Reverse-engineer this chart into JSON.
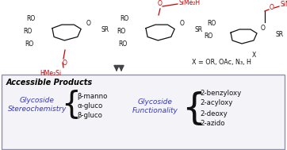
{
  "fig_width": 3.62,
  "fig_height": 1.89,
  "dpi": 100,
  "bg_color": "#ffffff",
  "box_edge": "#9090a8",
  "box_bg": "#f4f4f8",
  "title_text": "Accessible Products",
  "title_fontsize": 7.2,
  "title_color": "#000000",
  "blue_color": "#3535cc",
  "black_color": "#111111",
  "red_color": "#cc0000",
  "left_label": "Glycoside\nStereochemistry",
  "left_items": [
    "β-manno",
    "α-gluco",
    "β-gluco"
  ],
  "right_label": "Glycoside\nFunctionality",
  "right_items": [
    "2-benzyloxy",
    "2-acyloxy",
    "2-deoxy",
    "2-azido"
  ]
}
